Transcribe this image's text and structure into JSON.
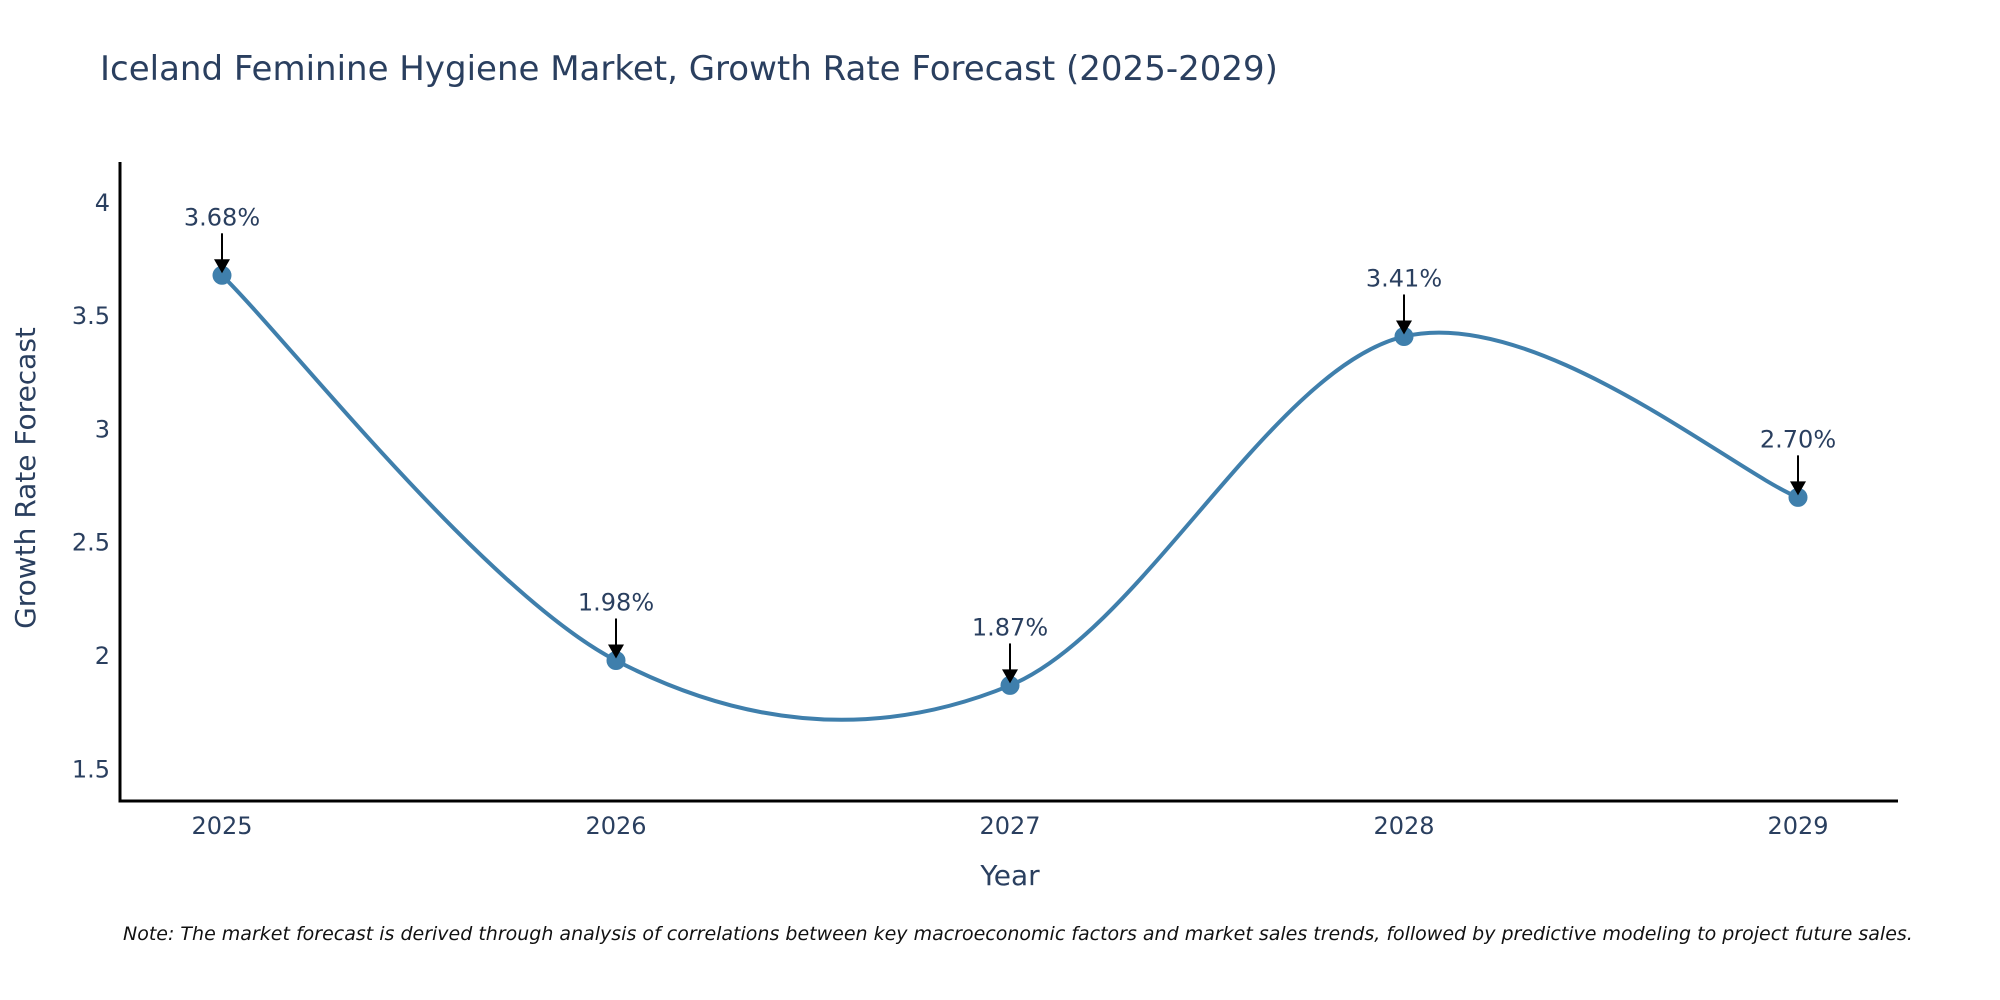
{
  "chart_data": {
    "type": "line",
    "title": "Iceland Feminine Hygiene Market, Growth Rate Forecast (2025-2029)",
    "xlabel": "Year",
    "ylabel": "Growth Rate Forecast",
    "categories": [
      "2025",
      "2026",
      "2027",
      "2028",
      "2029"
    ],
    "values": [
      3.68,
      1.98,
      1.87,
      3.41,
      2.7
    ],
    "data_labels": [
      "3.68%",
      "1.98%",
      "1.87%",
      "3.41%",
      "2.70%"
    ],
    "ylim": [
      1.36,
      4.18
    ],
    "yticks": [
      1.5,
      2,
      2.5,
      3,
      3.5,
      4
    ],
    "ytick_labels": [
      "1.5",
      "2",
      "2.5",
      "3",
      "3.5",
      "4"
    ],
    "grid": false,
    "line_color": "#3f7fac",
    "marker_color": "#3f7fac",
    "note": "Note: The market forecast is derived through analysis of correlations between key macroeconomic factors and market sales trends, followed by predictive modeling to project future sales."
  }
}
